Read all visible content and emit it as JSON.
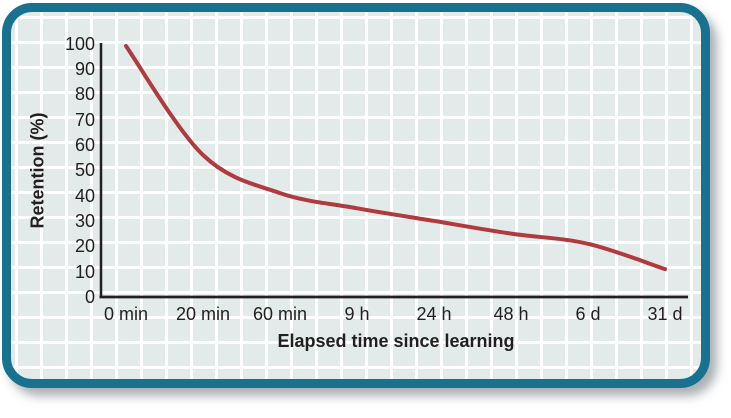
{
  "figure": {
    "description": "Forgetting curve line graph in rounded teal frame"
  },
  "colors": {
    "frame_border": "#17718f",
    "panel_background": "#e2ebe9",
    "grid_line": "#ffffff",
    "axis": "#231f20",
    "curve": "#b03a3e",
    "page_background": "#ffffff",
    "tick_text": "#231f20"
  },
  "chart_data": {
    "type": "line",
    "title": "",
    "xlabel": "Elapsed time since learning",
    "ylabel": "Retention (%)",
    "categories": [
      "0 min",
      "20 min",
      "60 min",
      "9 h",
      "24 h",
      "48 h",
      "6 d",
      "31 d"
    ],
    "series": [
      {
        "name": "retention",
        "values": [
          99,
          56,
          41,
          35,
          30,
          25,
          21,
          11
        ]
      }
    ],
    "yticks": [
      0,
      10,
      20,
      30,
      40,
      50,
      60,
      70,
      80,
      90,
      100
    ],
    "ylim": [
      0,
      100
    ],
    "grid": true,
    "legend": "none",
    "line_color": "#b03a3e",
    "line_width": 4
  }
}
